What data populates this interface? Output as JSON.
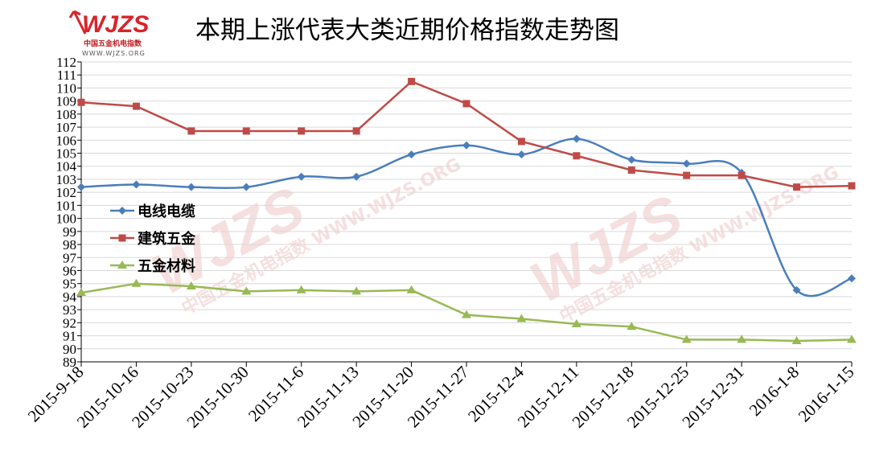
{
  "logo": {
    "word": "WJZS",
    "sub": "中国五金机电指数",
    "url": "WWW.WJZS.ORG"
  },
  "watermark": {
    "word": "WJZS",
    "sub": "中国五金机电指数",
    "url": "WWW.WJZS.ORG"
  },
  "chart_data": {
    "type": "line",
    "title": "本期上涨代表大类近期价格指数走势图",
    "categories": [
      "2015-9-18",
      "2015-10-16",
      "2015-10-23",
      "2015-10-30",
      "2015-11-6",
      "2015-11-13",
      "2015-11-20",
      "2015-11-27",
      "2015-12-4",
      "2015-12-11",
      "2015-12-18",
      "2015-12-25",
      "2015-12-31",
      "2016-1-8",
      "2016-1-15"
    ],
    "ylim": [
      89,
      112
    ],
    "yticks": [
      89,
      90,
      91,
      92,
      93,
      94,
      95,
      96,
      97,
      98,
      99,
      100,
      101,
      102,
      103,
      104,
      105,
      106,
      107,
      108,
      109,
      110,
      111,
      112
    ],
    "grid": true,
    "legend_position": "left-middle",
    "series": [
      {
        "name": "电线电缆",
        "color": "#4a7ebb",
        "marker": "diamond",
        "smooth": true,
        "values": [
          102.4,
          102.6,
          102.4,
          102.4,
          103.2,
          103.2,
          104.9,
          105.6,
          104.9,
          106.1,
          104.5,
          104.2,
          103.5,
          94.5,
          95.4
        ]
      },
      {
        "name": "建筑五金",
        "color": "#be4b48",
        "marker": "square",
        "smooth": false,
        "values": [
          108.9,
          108.6,
          106.7,
          106.7,
          106.7,
          106.7,
          110.5,
          108.8,
          105.9,
          104.8,
          103.7,
          103.3,
          103.3,
          102.4,
          102.5
        ]
      },
      {
        "name": "五金材料",
        "color": "#98b954",
        "marker": "triangle",
        "smooth": false,
        "values": [
          94.3,
          95.0,
          94.8,
          94.4,
          94.5,
          94.4,
          94.5,
          92.6,
          92.3,
          91.9,
          91.7,
          90.7,
          90.7,
          90.6,
          90.7
        ]
      }
    ]
  }
}
